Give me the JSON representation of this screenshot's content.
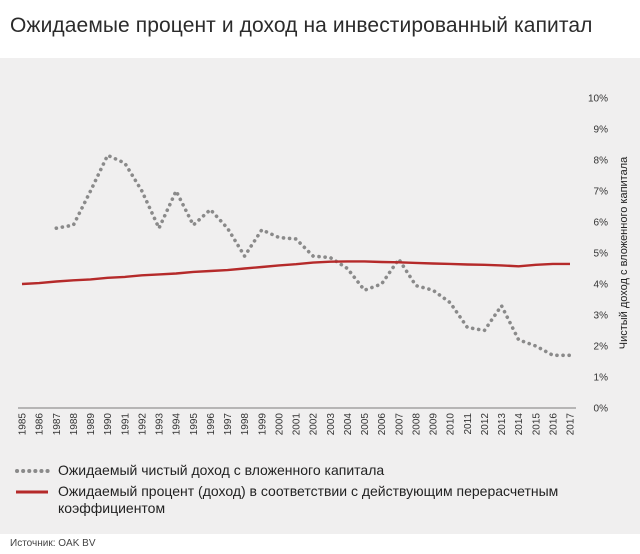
{
  "title": "Ожидаемые процент и доход на инвестированный капитал",
  "source": "Источник: OAK BV",
  "chart_data": {
    "type": "line",
    "title": "Ожидаемые процент и доход на инвестированный капитал",
    "xlabel": "",
    "ylabel": "Чистый доход с вложенного капитала",
    "ylim": [
      0,
      10
    ],
    "yticks": [
      "0%",
      "1%",
      "2%",
      "3%",
      "4%",
      "5%",
      "6%",
      "7%",
      "8%",
      "9%",
      "10%"
    ],
    "x": [
      1985,
      1986,
      1987,
      1988,
      1989,
      1990,
      1991,
      1992,
      1993,
      1994,
      1995,
      1996,
      1997,
      1998,
      1999,
      2000,
      2001,
      2002,
      2003,
      2004,
      2005,
      2006,
      2007,
      2008,
      2009,
      2010,
      2011,
      2012,
      2013,
      2014,
      2015,
      2016,
      2017
    ],
    "legend_position": "bottom",
    "grid": false,
    "series": [
      {
        "name": "Ожидаемый чистый доход с вложенного капитала",
        "style": "dotted",
        "color": "#8a8a8a",
        "values": [
          null,
          null,
          5.8,
          5.9,
          7.0,
          8.15,
          7.9,
          7.0,
          5.8,
          7.0,
          5.9,
          6.4,
          5.8,
          4.9,
          5.75,
          5.5,
          5.45,
          4.9,
          4.85,
          4.5,
          3.8,
          4.0,
          4.8,
          3.95,
          3.8,
          3.4,
          2.6,
          2.5,
          3.3,
          2.2,
          2.0,
          1.7,
          1.7
        ]
      },
      {
        "name": "Ожидаемый процент (доход) в соответствии с действующим перерасчетным коэффициентом",
        "style": "solid",
        "color": "#b52a2a",
        "values": [
          4.0,
          4.03,
          4.08,
          4.12,
          4.15,
          4.2,
          4.23,
          4.28,
          4.31,
          4.34,
          4.39,
          4.42,
          4.45,
          4.5,
          4.55,
          4.6,
          4.64,
          4.69,
          4.72,
          4.73,
          4.73,
          4.71,
          4.7,
          4.68,
          4.66,
          4.65,
          4.63,
          4.62,
          4.6,
          4.57,
          4.62,
          4.65,
          4.65
        ]
      }
    ]
  }
}
